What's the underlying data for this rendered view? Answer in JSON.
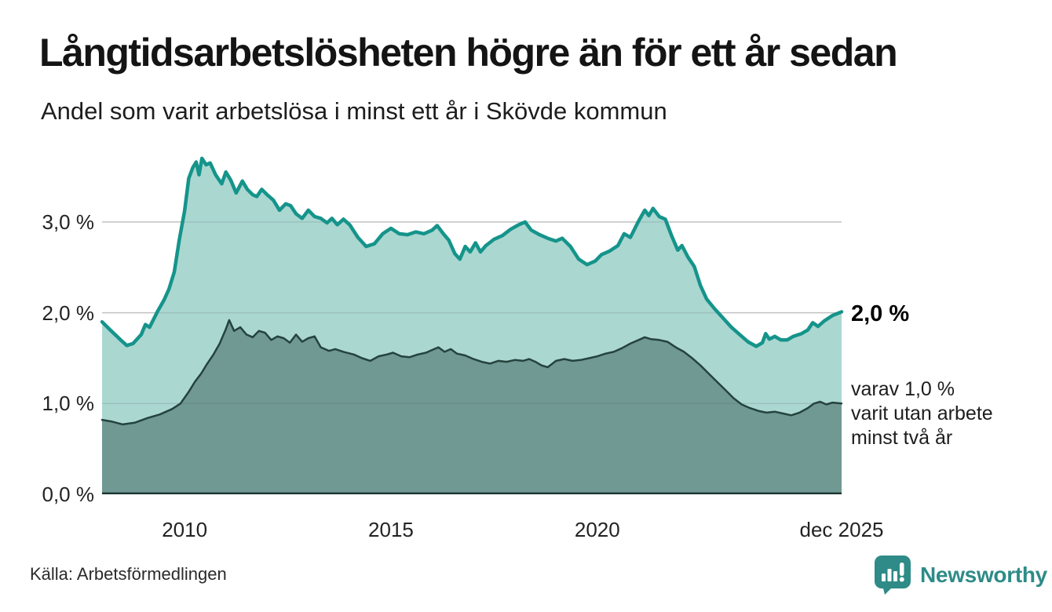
{
  "header": {
    "title": "Långtidsarbetslösheten högre än för ett år sedan",
    "subtitle": "Andel som varit arbetslösa i minst ett år i Skövde kommun"
  },
  "annotations": {
    "latest_total_label": "2,0 %",
    "latest_total_value": 2.0,
    "secondary_lines": [
      "varav 1,0 %",
      "varit utan arbete",
      "minst två år"
    ],
    "latest_two_year_value": 1.0
  },
  "source": {
    "label": "Källa: Arbetsförmedlingen"
  },
  "branding": {
    "name": "Newsworthy",
    "icon": "newsworthy-bubble-chart-icon",
    "color": "#2e8b87"
  },
  "chart_data": {
    "type": "area",
    "title": "Långtidsarbetslösheten högre än för ett år sedan",
    "subtitle": "Andel som varit arbetslösa i minst ett år i Skövde kommun",
    "unit": "%",
    "grid": true,
    "legend_position": "right-annotations",
    "x_range": [
      2008.0,
      2025.92
    ],
    "y_range": [
      0,
      3.803
    ],
    "yticks": [
      {
        "label": "0,0 %",
        "value": 0
      },
      {
        "label": "1,0 %",
        "value": 1
      },
      {
        "label": "2,0 %",
        "value": 2
      },
      {
        "label": "3,0 %",
        "value": 3
      }
    ],
    "xticks": [
      {
        "label": "2010",
        "value": 2010
      },
      {
        "label": "2015",
        "value": 2015
      },
      {
        "label": "2020",
        "value": 2020
      },
      {
        "label": "dec 2025",
        "value": 2025.92
      }
    ],
    "colors": {
      "grid": "#d8d8d8",
      "grid_over_fill": "rgba(90,90,90,0.16)",
      "baseline": "#1c3733",
      "axis_text": "#232323"
    },
    "series": [
      {
        "id": "minst-ett-ar",
        "name": "Andel arbetslösa minst ett år",
        "color": "#15948b",
        "fill": "#abd7d1",
        "stroke_width": 4.5,
        "latest_value": 2.0,
        "points": [
          [
            2008.0,
            1.9
          ],
          [
            2008.2,
            1.81
          ],
          [
            2008.45,
            1.7
          ],
          [
            2008.6,
            1.64
          ],
          [
            2008.75,
            1.66
          ],
          [
            2008.95,
            1.76
          ],
          [
            2009.05,
            1.87
          ],
          [
            2009.15,
            1.84
          ],
          [
            2009.25,
            1.93
          ],
          [
            2009.35,
            2.02
          ],
          [
            2009.5,
            2.14
          ],
          [
            2009.62,
            2.26
          ],
          [
            2009.75,
            2.45
          ],
          [
            2009.87,
            2.8
          ],
          [
            2010.0,
            3.12
          ],
          [
            2010.1,
            3.48
          ],
          [
            2010.2,
            3.6
          ],
          [
            2010.28,
            3.66
          ],
          [
            2010.35,
            3.52
          ],
          [
            2010.42,
            3.7
          ],
          [
            2010.52,
            3.63
          ],
          [
            2010.62,
            3.65
          ],
          [
            2010.75,
            3.52
          ],
          [
            2010.9,
            3.42
          ],
          [
            2011.0,
            3.55
          ],
          [
            2011.12,
            3.46
          ],
          [
            2011.25,
            3.32
          ],
          [
            2011.4,
            3.45
          ],
          [
            2011.52,
            3.36
          ],
          [
            2011.65,
            3.3
          ],
          [
            2011.75,
            3.28
          ],
          [
            2011.87,
            3.36
          ],
          [
            2012.0,
            3.3
          ],
          [
            2012.15,
            3.24
          ],
          [
            2012.3,
            3.13
          ],
          [
            2012.45,
            3.2
          ],
          [
            2012.57,
            3.18
          ],
          [
            2012.7,
            3.09
          ],
          [
            2012.85,
            3.04
          ],
          [
            2013.0,
            3.13
          ],
          [
            2013.15,
            3.06
          ],
          [
            2013.3,
            3.04
          ],
          [
            2013.45,
            2.99
          ],
          [
            2013.57,
            3.04
          ],
          [
            2013.7,
            2.97
          ],
          [
            2013.85,
            3.03
          ],
          [
            2014.0,
            2.97
          ],
          [
            2014.2,
            2.83
          ],
          [
            2014.4,
            2.73
          ],
          [
            2014.6,
            2.76
          ],
          [
            2014.8,
            2.87
          ],
          [
            2015.0,
            2.93
          ],
          [
            2015.2,
            2.87
          ],
          [
            2015.4,
            2.86
          ],
          [
            2015.6,
            2.89
          ],
          [
            2015.8,
            2.87
          ],
          [
            2016.0,
            2.91
          ],
          [
            2016.12,
            2.96
          ],
          [
            2016.27,
            2.87
          ],
          [
            2016.4,
            2.8
          ],
          [
            2016.55,
            2.65
          ],
          [
            2016.67,
            2.59
          ],
          [
            2016.8,
            2.73
          ],
          [
            2016.92,
            2.67
          ],
          [
            2017.05,
            2.77
          ],
          [
            2017.17,
            2.67
          ],
          [
            2017.3,
            2.74
          ],
          [
            2017.5,
            2.81
          ],
          [
            2017.7,
            2.85
          ],
          [
            2017.9,
            2.92
          ],
          [
            2018.1,
            2.97
          ],
          [
            2018.25,
            3.0
          ],
          [
            2018.4,
            2.91
          ],
          [
            2018.6,
            2.86
          ],
          [
            2018.8,
            2.82
          ],
          [
            2019.0,
            2.79
          ],
          [
            2019.15,
            2.82
          ],
          [
            2019.35,
            2.73
          ],
          [
            2019.55,
            2.59
          ],
          [
            2019.75,
            2.53
          ],
          [
            2019.95,
            2.57
          ],
          [
            2020.1,
            2.64
          ],
          [
            2020.3,
            2.68
          ],
          [
            2020.5,
            2.74
          ],
          [
            2020.65,
            2.87
          ],
          [
            2020.8,
            2.83
          ],
          [
            2021.0,
            3.01
          ],
          [
            2021.15,
            3.13
          ],
          [
            2021.25,
            3.07
          ],
          [
            2021.35,
            3.15
          ],
          [
            2021.5,
            3.06
          ],
          [
            2021.65,
            3.03
          ],
          [
            2021.8,
            2.85
          ],
          [
            2021.95,
            2.69
          ],
          [
            2022.05,
            2.74
          ],
          [
            2022.2,
            2.61
          ],
          [
            2022.35,
            2.51
          ],
          [
            2022.5,
            2.3
          ],
          [
            2022.65,
            2.15
          ],
          [
            2022.85,
            2.04
          ],
          [
            2023.05,
            1.94
          ],
          [
            2023.25,
            1.84
          ],
          [
            2023.45,
            1.76
          ],
          [
            2023.65,
            1.68
          ],
          [
            2023.85,
            1.63
          ],
          [
            2024.0,
            1.67
          ],
          [
            2024.08,
            1.77
          ],
          [
            2024.17,
            1.71
          ],
          [
            2024.3,
            1.74
          ],
          [
            2024.45,
            1.7
          ],
          [
            2024.6,
            1.7
          ],
          [
            2024.75,
            1.74
          ],
          [
            2024.95,
            1.77
          ],
          [
            2025.1,
            1.81
          ],
          [
            2025.22,
            1.89
          ],
          [
            2025.35,
            1.85
          ],
          [
            2025.5,
            1.91
          ],
          [
            2025.7,
            1.97
          ],
          [
            2025.92,
            2.01
          ]
        ]
      },
      {
        "id": "minst-tva-ar",
        "name": "varav utan arbete minst två år",
        "color": "#25433e",
        "fill": "#6f9992",
        "stroke_width": 2.5,
        "latest_value": 1.0,
        "points": [
          [
            2008.0,
            0.82
          ],
          [
            2008.25,
            0.8
          ],
          [
            2008.5,
            0.77
          ],
          [
            2008.8,
            0.79
          ],
          [
            2009.1,
            0.84
          ],
          [
            2009.4,
            0.88
          ],
          [
            2009.7,
            0.94
          ],
          [
            2009.9,
            1.0
          ],
          [
            2010.1,
            1.13
          ],
          [
            2010.25,
            1.24
          ],
          [
            2010.4,
            1.33
          ],
          [
            2010.55,
            1.44
          ],
          [
            2010.7,
            1.54
          ],
          [
            2010.85,
            1.66
          ],
          [
            2011.0,
            1.82
          ],
          [
            2011.08,
            1.92
          ],
          [
            2011.2,
            1.8
          ],
          [
            2011.35,
            1.84
          ],
          [
            2011.5,
            1.76
          ],
          [
            2011.65,
            1.73
          ],
          [
            2011.8,
            1.8
          ],
          [
            2011.95,
            1.78
          ],
          [
            2012.1,
            1.7
          ],
          [
            2012.25,
            1.74
          ],
          [
            2012.4,
            1.72
          ],
          [
            2012.55,
            1.67
          ],
          [
            2012.7,
            1.76
          ],
          [
            2012.85,
            1.68
          ],
          [
            2013.0,
            1.72
          ],
          [
            2013.15,
            1.74
          ],
          [
            2013.3,
            1.62
          ],
          [
            2013.5,
            1.58
          ],
          [
            2013.65,
            1.6
          ],
          [
            2013.85,
            1.57
          ],
          [
            2014.1,
            1.54
          ],
          [
            2014.3,
            1.5
          ],
          [
            2014.5,
            1.47
          ],
          [
            2014.7,
            1.52
          ],
          [
            2014.9,
            1.54
          ],
          [
            2015.05,
            1.56
          ],
          [
            2015.25,
            1.52
          ],
          [
            2015.45,
            1.51
          ],
          [
            2015.65,
            1.54
          ],
          [
            2015.85,
            1.56
          ],
          [
            2016.0,
            1.59
          ],
          [
            2016.15,
            1.62
          ],
          [
            2016.3,
            1.57
          ],
          [
            2016.45,
            1.6
          ],
          [
            2016.6,
            1.55
          ],
          [
            2016.8,
            1.53
          ],
          [
            2017.0,
            1.49
          ],
          [
            2017.2,
            1.46
          ],
          [
            2017.4,
            1.44
          ],
          [
            2017.6,
            1.47
          ],
          [
            2017.8,
            1.46
          ],
          [
            2018.0,
            1.48
          ],
          [
            2018.2,
            1.47
          ],
          [
            2018.35,
            1.49
          ],
          [
            2018.5,
            1.46
          ],
          [
            2018.65,
            1.42
          ],
          [
            2018.8,
            1.4
          ],
          [
            2019.0,
            1.47
          ],
          [
            2019.2,
            1.49
          ],
          [
            2019.4,
            1.47
          ],
          [
            2019.6,
            1.48
          ],
          [
            2019.8,
            1.5
          ],
          [
            2020.0,
            1.52
          ],
          [
            2020.2,
            1.55
          ],
          [
            2020.4,
            1.57
          ],
          [
            2020.6,
            1.61
          ],
          [
            2020.8,
            1.66
          ],
          [
            2021.0,
            1.7
          ],
          [
            2021.15,
            1.73
          ],
          [
            2021.3,
            1.71
          ],
          [
            2021.5,
            1.7
          ],
          [
            2021.7,
            1.68
          ],
          [
            2021.9,
            1.62
          ],
          [
            2022.1,
            1.57
          ],
          [
            2022.3,
            1.5
          ],
          [
            2022.5,
            1.42
          ],
          [
            2022.7,
            1.33
          ],
          [
            2022.9,
            1.24
          ],
          [
            2023.1,
            1.15
          ],
          [
            2023.3,
            1.06
          ],
          [
            2023.5,
            0.99
          ],
          [
            2023.7,
            0.95
          ],
          [
            2023.9,
            0.92
          ],
          [
            2024.1,
            0.9
          ],
          [
            2024.3,
            0.91
          ],
          [
            2024.5,
            0.89
          ],
          [
            2024.7,
            0.87
          ],
          [
            2024.9,
            0.9
          ],
          [
            2025.1,
            0.95
          ],
          [
            2025.25,
            1.0
          ],
          [
            2025.4,
            1.02
          ],
          [
            2025.55,
            0.99
          ],
          [
            2025.7,
            1.01
          ],
          [
            2025.92,
            1.0
          ]
        ]
      }
    ]
  }
}
